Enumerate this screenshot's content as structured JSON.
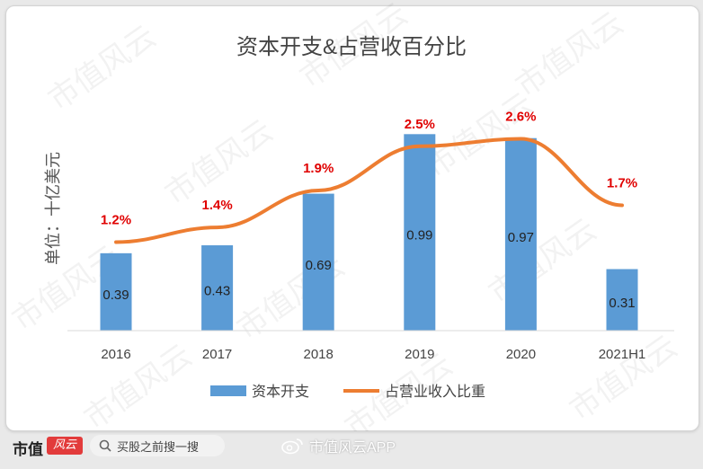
{
  "chart_data": {
    "type": "bar+line",
    "title": "资本开支&占营收百分比",
    "ylabel": "单位：十亿美元",
    "categories": [
      "2016",
      "2017",
      "2018",
      "2019",
      "2020",
      "2021H1"
    ],
    "series": [
      {
        "name": "资本开支",
        "type": "bar",
        "values": [
          0.39,
          0.43,
          0.69,
          0.99,
          0.97,
          0.31
        ],
        "color": "#5b9bd5"
      },
      {
        "name": "占营业收入比重",
        "type": "line",
        "values": [
          1.2,
          1.4,
          1.9,
          2.5,
          2.6,
          1.7
        ],
        "labels": [
          "1.2%",
          "1.4%",
          "1.9%",
          "2.5%",
          "2.6%",
          "1.7%"
        ],
        "color": "#ed7d31",
        "label_color": "#e00000"
      }
    ],
    "bar_ylim": [
      0,
      1.1
    ],
    "line_ylim": [
      0,
      2.96
    ],
    "legend_position": "bottom",
    "grid": false
  },
  "watermark": "市值风云",
  "footer": {
    "brand": "市值",
    "brand_badge": "风云",
    "search_text": "买股之前搜一搜",
    "weibo_text": "市值风云APP"
  }
}
